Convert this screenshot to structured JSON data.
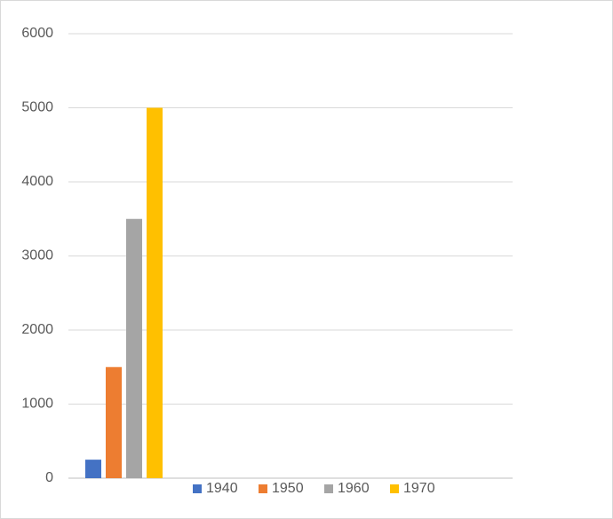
{
  "chart_data": {
    "type": "bar",
    "categories": [
      null,
      null,
      null,
      null
    ],
    "series": [
      {
        "name": "1940",
        "color": "#4472c4",
        "values": [
          250,
          null,
          null,
          null
        ]
      },
      {
        "name": "1950",
        "color": "#ed7d31",
        "values": [
          1500,
          null,
          null,
          null
        ]
      },
      {
        "name": "1960",
        "color": "#a5a5a5",
        "values": [
          3500,
          null,
          null,
          null
        ]
      },
      {
        "name": "1970",
        "color": "#ffc000",
        "values": [
          5000,
          null,
          null,
          null
        ]
      }
    ],
    "ylim": [
      0,
      6000
    ],
    "yticks": [
      0,
      1000,
      2000,
      3000,
      4000,
      5000,
      6000
    ],
    "grid": true,
    "legend": "bottom"
  }
}
